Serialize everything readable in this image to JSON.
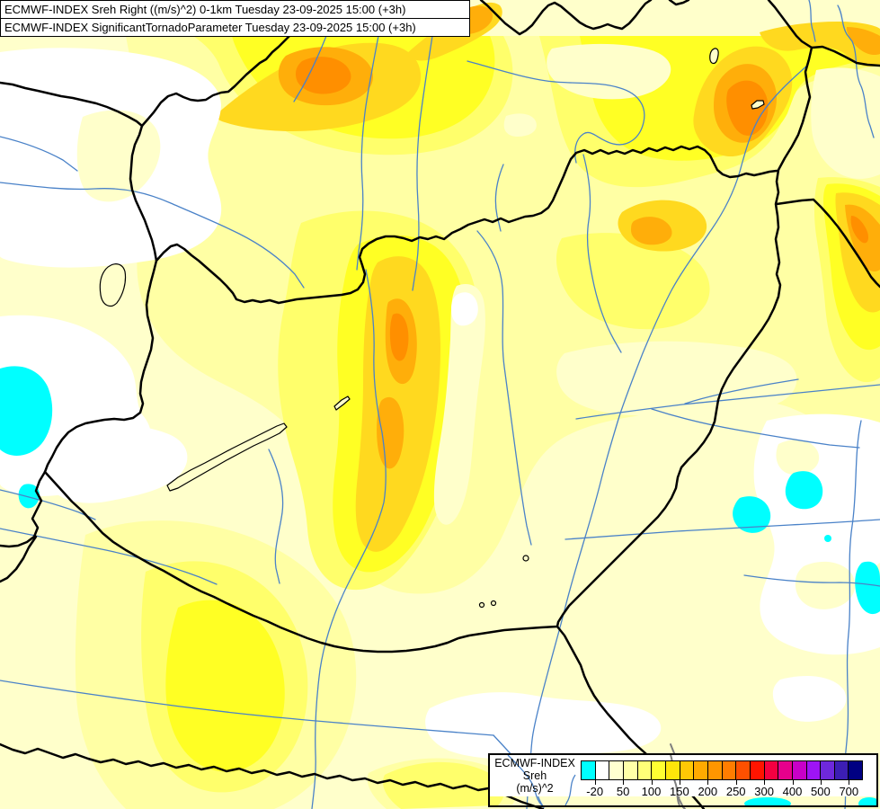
{
  "titles": {
    "line1": "ECMWF-INDEX Sreh Right ((m/s)^2) 0-1km Tuesday 23-09-2025 15:00 (+3h)",
    "line2": "ECMWF-INDEX SignificantTornadoParameter Tuesday 23-09-2025 15:00 (+3h)"
  },
  "legend": {
    "product": "ECMWF-INDEX",
    "variable": "Sreh",
    "units": "(m/s)^2",
    "tick_labels": [
      "-20",
      "50",
      "100",
      "150",
      "200",
      "250",
      "300",
      "400",
      "500",
      "700"
    ],
    "colors": [
      "#00FFFF",
      "#FFFFFF",
      "#FFFFD0",
      "#FFFFA8",
      "#FFFF78",
      "#FFFF32",
      "#FFE60A",
      "#FFC805",
      "#FFAA00",
      "#FF9600",
      "#FF7D00",
      "#FF5000",
      "#FF1400",
      "#F50041",
      "#E6008C",
      "#C800C8",
      "#9E14F5",
      "#6E28DC",
      "#3C1EB4",
      "#000082"
    ]
  },
  "map": {
    "region": "Carpathian Basin / Hungary",
    "palette": {
      "background": "#FFFFCB",
      "level1": "#FFFFA4",
      "level2": "#FFFF6B",
      "level3": "#FFFF24",
      "level4": "#FFD91F",
      "level5": "#FFAE0A",
      "level6": "#FF8F00",
      "near_zero": "#FFFFFF",
      "below_zero": "#00FFFF",
      "river": "#4A82C8",
      "border": "#000000",
      "secondary_border": "#7F7F7F",
      "lake_outline": "#000000"
    }
  }
}
